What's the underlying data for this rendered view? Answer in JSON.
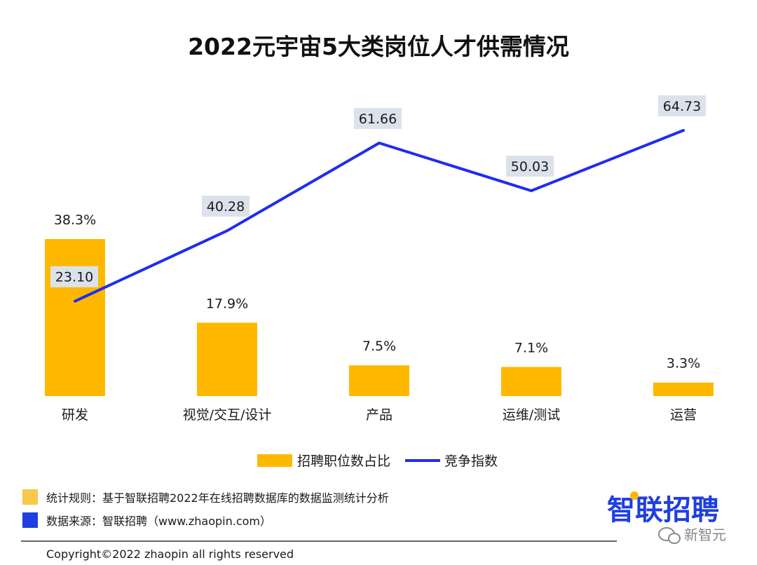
{
  "footer": {
    "rule_text": "统计规则：基于智联招聘2022年在线招聘数据库的数据监测统计分析",
    "source_text": "数据来源：智联招聘（www.zhaopin.com）",
    "copyright": "Copyright©2022 zhaopin all rights reserved",
    "logo_text": "智联招聘",
    "watermark_text": "新智元",
    "rule_color": "#F6C94A",
    "source_color": "#1F3FE0"
  },
  "chart_data": {
    "type": "bar",
    "title": "2022元宇宙5大类岗位人才供需情况",
    "categories": [
      "研发",
      "视觉/交互/设计",
      "产品",
      "运维/测试",
      "运营"
    ],
    "series": [
      {
        "name": "招聘职位数占比",
        "type": "bar",
        "values": [
          38.3,
          17.9,
          7.5,
          7.1,
          3.3
        ],
        "labels": [
          "38.3%",
          "17.9%",
          "7.5%",
          "7.1%",
          "3.3%"
        ],
        "color": "#FFB800",
        "ylim": [
          0,
          80
        ]
      },
      {
        "name": "竞争指数",
        "type": "line",
        "values": [
          23.1,
          40.28,
          61.66,
          50.03,
          64.73
        ],
        "labels": [
          "23.10",
          "40.28",
          "61.66",
          "50.03",
          "64.73"
        ],
        "color": "#1F2DF0",
        "label_bg": "#DCE2EC",
        "ylim": [
          0,
          90
        ]
      }
    ],
    "legend_position": "bottom"
  }
}
